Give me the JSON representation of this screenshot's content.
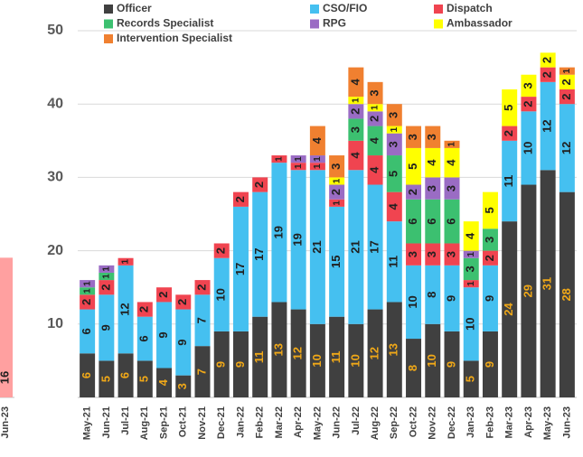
{
  "chart_data": [
    {
      "type": "stacked_bar",
      "categories": [
        "May-21",
        "Jun-21",
        "Jul-21",
        "Aug-21",
        "Sep-21",
        "Oct-21",
        "Nov-21",
        "Dec-21",
        "Jan-22",
        "Feb-22",
        "Mar-22",
        "Apr-22",
        "May-22",
        "Jun-22",
        "Jul-22",
        "Aug-22",
        "Sep-22",
        "Oct-22",
        "Nov-22",
        "Dec-22",
        "Jan-23",
        "Feb-23",
        "Mar-23",
        "Apr-23",
        "May-23",
        "Jun-23"
      ],
      "series": [
        {
          "name": "Officer",
          "color": "#404040",
          "values": [
            6,
            5,
            6,
            5,
            4,
            3,
            7,
            9,
            9,
            11,
            13,
            12,
            10,
            11,
            10,
            12,
            13,
            8,
            10,
            9,
            5,
            9,
            24,
            29,
            31,
            28
          ]
        },
        {
          "name": "CSO/FIO",
          "color": "#45c0f0",
          "values": [
            6,
            9,
            12,
            6,
            9,
            9,
            7,
            10,
            17,
            17,
            19,
            19,
            21,
            15,
            21,
            17,
            11,
            10,
            8,
            9,
            10,
            9,
            11,
            10,
            12,
            12
          ]
        },
        {
          "name": "Dispatch",
          "color": "#f04450",
          "values": [
            2,
            2,
            1,
            2,
            2,
            2,
            2,
            2,
            2,
            2,
            1,
            1,
            1,
            1,
            4,
            4,
            4,
            3,
            3,
            3,
            1,
            2,
            2,
            2,
            2,
            2
          ]
        },
        {
          "name": "Records Specialist",
          "color": "#3cc070",
          "values": [
            1,
            1,
            0,
            0,
            0,
            0,
            0,
            0,
            0,
            0,
            0,
            0,
            0,
            0,
            3,
            4,
            5,
            6,
            6,
            6,
            3,
            3,
            0,
            0,
            0,
            0
          ]
        },
        {
          "name": "RPG",
          "color": "#9a6cc4",
          "values": [
            1,
            1,
            0,
            0,
            0,
            0,
            0,
            0,
            0,
            0,
            0,
            1,
            1,
            2,
            2,
            2,
            3,
            2,
            3,
            3,
            1,
            0,
            0,
            0,
            0,
            0
          ]
        },
        {
          "name": "Ambassador",
          "color": "#ffff00",
          "values": [
            0,
            0,
            0,
            0,
            0,
            0,
            0,
            0,
            0,
            0,
            0,
            0,
            0,
            1,
            1,
            1,
            1,
            5,
            4,
            4,
            4,
            5,
            5,
            3,
            2,
            2
          ]
        },
        {
          "name": "Intervention Specialist",
          "color": "#f08030",
          "values": [
            0,
            0,
            0,
            0,
            0,
            0,
            0,
            0,
            0,
            0,
            0,
            0,
            4,
            3,
            4,
            3,
            3,
            3,
            3,
            1,
            0,
            0,
            0,
            0,
            0,
            1
          ]
        }
      ],
      "ylim": [
        0,
        50
      ],
      "yticks": [
        10,
        20,
        30,
        40,
        50
      ],
      "grid": true
    },
    {
      "type": "bar",
      "categories": [
        "Jun-23"
      ],
      "values": [
        16
      ],
      "color": "#ffa0a0",
      "ylim": [
        0,
        42
      ]
    }
  ]
}
